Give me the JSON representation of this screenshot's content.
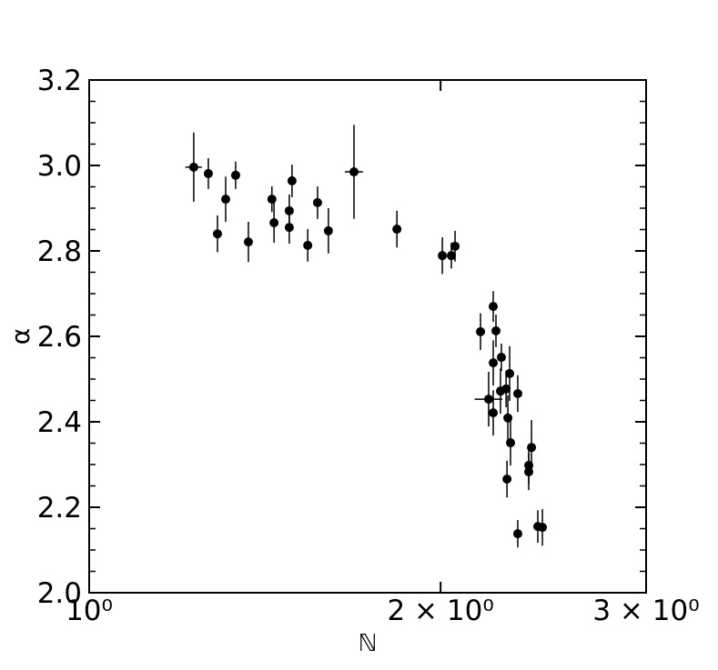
{
  "chart_data": {
    "type": "scatter",
    "xlabel": "ℕ",
    "ylabel": "α",
    "log_x": true,
    "color": "#000000",
    "x": [
      1.229,
      1.265,
      1.288,
      1.309,
      1.335,
      1.369,
      1.434,
      1.44,
      1.484,
      1.484,
      1.492,
      1.539,
      1.569,
      1.603,
      1.686,
      1.835,
      2.007,
      2.043,
      2.058,
      2.164,
      2.199,
      2.219,
      2.219,
      2.219,
      2.231,
      2.255,
      2.251,
      2.276,
      2.28,
      2.284,
      2.292,
      2.296,
      2.329,
      2.329,
      2.38,
      2.38,
      2.393,
      2.423,
      2.445
    ],
    "y": [
      2.996,
      2.981,
      2.84,
      2.921,
      2.977,
      2.821,
      2.921,
      2.866,
      2.894,
      2.855,
      2.964,
      2.813,
      2.913,
      2.847,
      2.985,
      2.851,
      2.789,
      2.789,
      2.811,
      2.611,
      2.453,
      2.67,
      2.538,
      2.421,
      2.613,
      2.551,
      2.472,
      2.477,
      2.266,
      2.409,
      2.513,
      2.351,
      2.466,
      2.138,
      2.283,
      2.298,
      2.34,
      2.155,
      2.153
    ],
    "yerr": [
      0.081,
      0.036,
      0.043,
      0.053,
      0.032,
      0.047,
      0.03,
      0.047,
      0.038,
      0.038,
      0.038,
      0.038,
      0.038,
      0.053,
      0.11,
      0.043,
      0.043,
      0.03,
      0.036,
      0.043,
      0.064,
      0.036,
      0.053,
      0.053,
      0.038,
      0.032,
      0.053,
      0.043,
      0.043,
      0.053,
      0.064,
      0.053,
      0.043,
      0.032,
      0.043,
      0.043,
      0.064,
      0.038,
      0.043
    ],
    "xerr": [
      0.02,
      null,
      null,
      null,
      null,
      null,
      null,
      null,
      null,
      null,
      null,
      null,
      null,
      null,
      0.03,
      null,
      null,
      null,
      null,
      null,
      0.06,
      null,
      null,
      null,
      null,
      null,
      null,
      null,
      null,
      null,
      null,
      null,
      null,
      null,
      null,
      null,
      null,
      null,
      null
    ],
    "xlim": [
      1,
      3
    ],
    "xticks": [
      {
        "value": 1,
        "label": "10⁰"
      },
      {
        "value": 2,
        "label": "2 × 10⁰"
      },
      {
        "value": 3,
        "label": "3 × 10⁰"
      }
    ],
    "ylim": [
      2.0,
      3.2
    ],
    "yticks": [
      {
        "value": 2,
        "label": "2.0"
      },
      2.2,
      2.4,
      2.6,
      2.8,
      {
        "value": 3,
        "label": "3.0"
      },
      3.2
    ],
    "yminorticks": [
      2.05,
      2.1,
      2.15,
      2.25,
      2.3,
      2.35,
      2.45,
      2.5,
      2.55,
      2.65,
      2.7,
      2.75,
      2.85,
      2.9,
      2.95,
      3.05,
      3.1,
      3.15
    ]
  }
}
